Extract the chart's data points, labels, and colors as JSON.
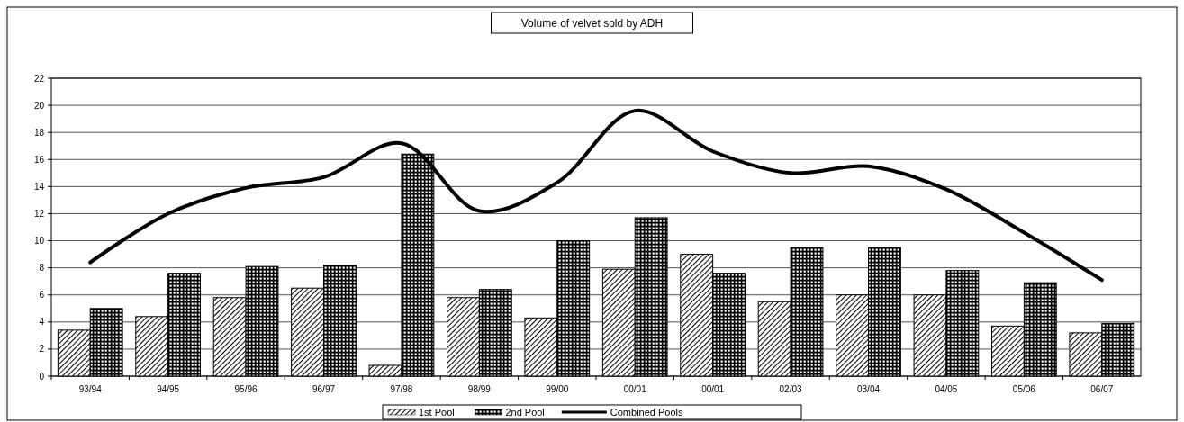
{
  "chart_data": {
    "type": "bar",
    "title": "Volume of velvet sold by ADH",
    "categories": [
      "93/94",
      "94/95",
      "95/96",
      "96/97",
      "97/98",
      "98/99",
      "99/00",
      "00/01",
      "00/01",
      "02/03",
      "03/04",
      "04/05",
      "05/06",
      "06/07"
    ],
    "series": [
      {
        "name": "1st Pool",
        "color": "#000000",
        "values": [
          3.4,
          4.4,
          5.8,
          6.5,
          0.8,
          5.8,
          4.3,
          7.9,
          9.0,
          5.5,
          6.0,
          6.0,
          3.7,
          3.2
        ]
      },
      {
        "name": "2nd Pool",
        "color": "#000000",
        "values": [
          5.0,
          7.6,
          8.1,
          8.2,
          16.4,
          6.4,
          10.0,
          11.7,
          7.6,
          9.5,
          9.5,
          7.8,
          6.9,
          3.9
        ]
      },
      {
        "name": "Combined Pools",
        "type": "line",
        "color": "#000000",
        "values": [
          8.4,
          12.0,
          13.9,
          14.7,
          17.2,
          12.2,
          14.3,
          19.6,
          16.6,
          15.0,
          15.5,
          13.8,
          10.6,
          7.1
        ]
      }
    ],
    "ylim": [
      0,
      22
    ],
    "yticks": [
      0,
      2,
      4,
      6,
      8,
      10,
      12,
      14,
      16,
      18,
      20,
      22
    ],
    "grid": "y",
    "legend": "bottom",
    "marker": "none",
    "line_style": "solid"
  }
}
